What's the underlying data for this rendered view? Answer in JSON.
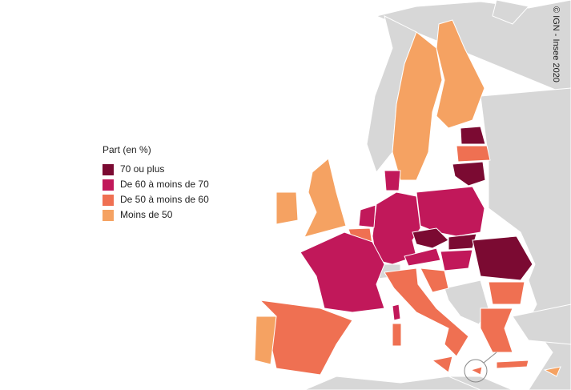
{
  "legend": {
    "title": "Part (en %)",
    "items": [
      {
        "label": "70 ou plus",
        "color": "#7b0a32"
      },
      {
        "label": "De 60 à moins de 70",
        "color": "#c1185a"
      },
      {
        "label": "De 50 à moins de 60",
        "color": "#ef7052"
      },
      {
        "label": "Moins de 50",
        "color": "#f5a262"
      }
    ]
  },
  "credit": "© IGN - Insee 2020"
}
